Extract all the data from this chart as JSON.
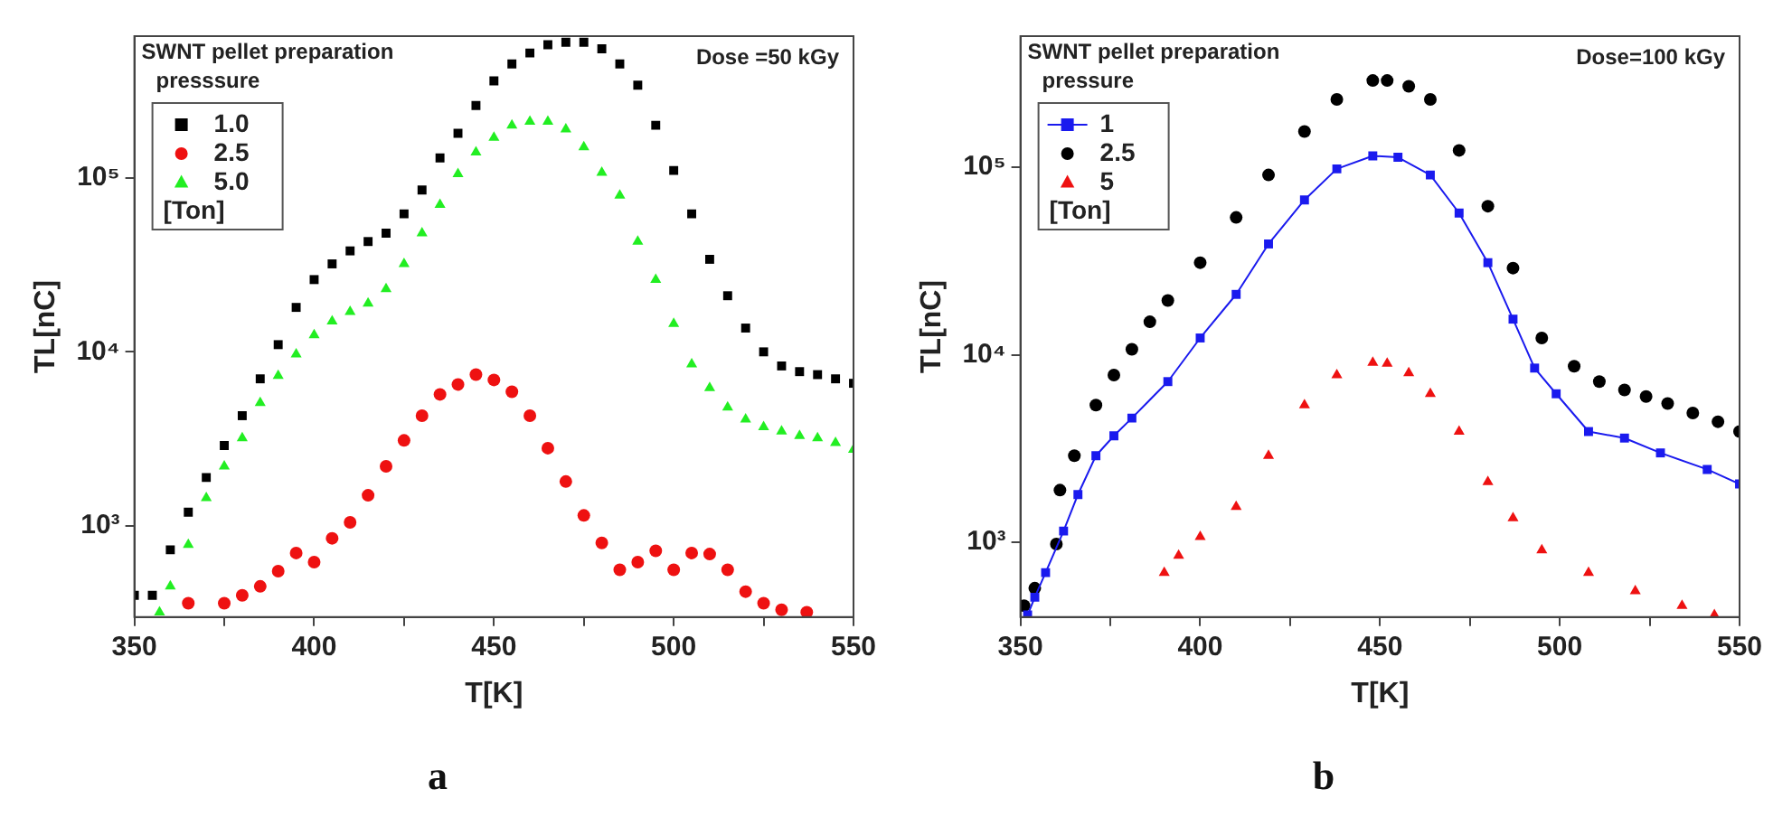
{
  "chart_data": [
    {
      "type": "scatter",
      "title": "a",
      "xlabel": "T[K]",
      "ylabel": "TL[nC]",
      "legend_title": "SWNT pellet preparation presssure",
      "annotations": [
        "Dose =50 kGy",
        "[Ton]"
      ],
      "log": "y",
      "legend": "top left",
      "xlim": [
        350,
        550
      ],
      "xticks": [
        350,
        {
          "value": 375,
          "label": null
        },
        400,
        {
          "value": 425,
          "label": null
        },
        450,
        {
          "value": 475,
          "label": null
        },
        500,
        {
          "value": 525,
          "label": null
        },
        550
      ],
      "ylim": [
        300,
        650000
      ],
      "yticks": [
        {
          "value": 1000,
          "label": "10³"
        },
        {
          "value": 10000,
          "label": "10⁴"
        },
        {
          "value": 100000,
          "label": "10⁵"
        }
      ],
      "series": [
        {
          "name": "1.0",
          "color": "#000000",
          "marker": "square",
          "x": [
            350,
            355,
            360,
            365,
            370,
            375,
            380,
            385,
            390,
            395,
            400,
            405,
            410,
            415,
            420,
            425,
            430,
            435,
            440,
            445,
            450,
            455,
            460,
            465,
            470,
            475,
            480,
            485,
            490,
            495,
            500,
            505,
            510,
            515,
            520,
            525,
            530,
            535,
            540,
            545,
            550
          ],
          "values": [
            400,
            400,
            730,
            1200,
            1900,
            2900,
            4300,
            7000,
            11000,
            18000,
            26000,
            32000,
            38000,
            43000,
            48000,
            62000,
            85000,
            130000,
            180000,
            260000,
            360000,
            450000,
            520000,
            580000,
            600000,
            600000,
            550000,
            450000,
            340000,
            200000,
            110000,
            62000,
            34000,
            21000,
            13700,
            10000,
            8300,
            7700,
            7400,
            7000,
            6600
          ]
        },
        {
          "name": "2.5",
          "color": "#ee1111",
          "marker": "circle",
          "x": [
            365,
            375,
            380,
            385,
            390,
            395,
            400,
            405,
            410,
            415,
            420,
            425,
            430,
            435,
            440,
            445,
            450,
            455,
            460,
            465,
            470,
            475,
            480,
            485,
            490,
            495,
            500,
            505,
            510,
            515,
            520,
            525,
            530,
            537
          ],
          "values": [
            360,
            360,
            400,
            450,
            550,
            700,
            620,
            850,
            1050,
            1500,
            2200,
            3100,
            4300,
            5700,
            6500,
            7400,
            6900,
            5900,
            4300,
            2800,
            1800,
            1150,
            800,
            560,
            620,
            720,
            560,
            700,
            690,
            560,
            420,
            360,
            330,
            320
          ]
        },
        {
          "name": "5.0",
          "color": "#22ee22",
          "marker": "triangle",
          "x": [
            357,
            360,
            365,
            370,
            375,
            380,
            385,
            390,
            395,
            400,
            405,
            410,
            415,
            420,
            425,
            430,
            435,
            440,
            445,
            450,
            455,
            460,
            465,
            470,
            475,
            480,
            485,
            490,
            495,
            500,
            505,
            510,
            515,
            520,
            525,
            530,
            535,
            540,
            545,
            550
          ],
          "values": [
            320,
            450,
            780,
            1450,
            2200,
            3200,
            5100,
            7300,
            9700,
            12500,
            15000,
            17000,
            19000,
            23000,
            32000,
            48000,
            70000,
            105000,
            140000,
            170000,
            200000,
            210000,
            210000,
            190000,
            150000,
            107000,
            79000,
            43000,
            26000,
            14500,
            8500,
            6200,
            4800,
            4100,
            3700,
            3500,
            3300,
            3200,
            3000,
            2750
          ]
        }
      ]
    },
    {
      "type": "scatter",
      "title": "b",
      "xlabel": "T[K]",
      "ylabel": "TL[nC]",
      "legend_title": "SWNT pellet preparation pressure",
      "annotations": [
        "Dose=100 kGy",
        "[Ton]"
      ],
      "log": "y",
      "legend": "top left",
      "xlim": [
        350,
        550
      ],
      "xticks": [
        350,
        {
          "value": 375,
          "label": null
        },
        400,
        {
          "value": 425,
          "label": null
        },
        450,
        {
          "value": 475,
          "label": null
        },
        500,
        {
          "value": 525,
          "label": null
        },
        550
      ],
      "ylim": [
        400,
        500000
      ],
      "yticks": [
        {
          "value": 1000,
          "label": "10³"
        },
        {
          "value": 10000,
          "label": "10⁴"
        },
        {
          "value": 100000,
          "label": "10⁵"
        }
      ],
      "series": [
        {
          "name": "1",
          "color": "#1a1aee",
          "type": "line",
          "marker": "square",
          "x": [
            352,
            354,
            357,
            362,
            366,
            371,
            376,
            381,
            391,
            400,
            410,
            419,
            429,
            438,
            448,
            455,
            464,
            472,
            480,
            487,
            493,
            499,
            508,
            518,
            528,
            541,
            550
          ],
          "values": [
            410,
            510,
            690,
            1150,
            1800,
            2900,
            3700,
            4600,
            7200,
            12300,
            21000,
            39000,
            67000,
            98000,
            115000,
            113000,
            91000,
            57000,
            31000,
            15500,
            8500,
            6200,
            3900,
            3600,
            3000,
            2450,
            2050
          ]
        },
        {
          "name": "2.5",
          "color": "#000000",
          "marker": "circle",
          "x": [
            351,
            354,
            360,
            361,
            365,
            371,
            376,
            381,
            386,
            391,
            400,
            410,
            419,
            429,
            438,
            448,
            452,
            458,
            464,
            472,
            480,
            487,
            495,
            504,
            511,
            518,
            524,
            530,
            537,
            544,
            550
          ],
          "values": [
            460,
            570,
            980,
            1900,
            2900,
            5400,
            7800,
            10700,
            15000,
            19500,
            31000,
            54000,
            91000,
            155000,
            230000,
            290000,
            290000,
            270000,
            230000,
            123000,
            62000,
            29000,
            12300,
            8700,
            7200,
            6500,
            6000,
            5500,
            4900,
            4400,
            3900
          ]
        },
        {
          "name": "5",
          "color": "#ee1111",
          "marker": "triangle",
          "x": [
            390,
            394,
            400,
            410,
            419,
            429,
            438,
            448,
            452,
            458,
            464,
            472,
            480,
            487,
            495,
            508,
            521,
            534,
            543
          ],
          "values": [
            690,
            850,
            1070,
            1550,
            2900,
            5400,
            7800,
            9100,
            9000,
            8000,
            6200,
            3900,
            2100,
            1350,
            910,
            690,
            550,
            460,
            410
          ]
        }
      ]
    }
  ]
}
